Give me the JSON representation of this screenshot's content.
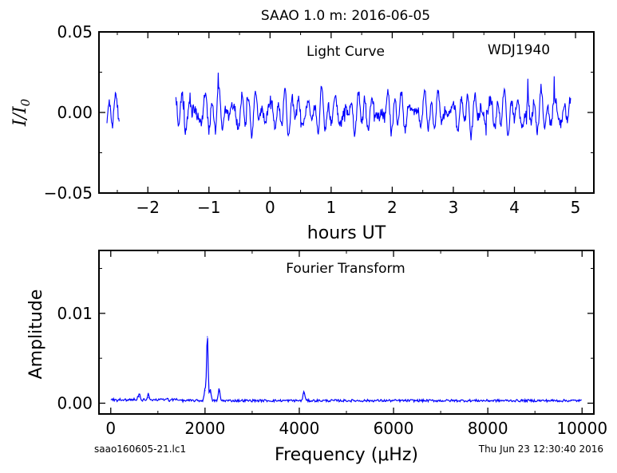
{
  "title": "SAAO 1.0 m:  2016-06-05",
  "footer": {
    "left": "saao160605-21.lc1",
    "right": "Thu Jun 23 12:30:40 2016"
  },
  "line_color": "#0000ff",
  "chart_data": [
    {
      "type": "line",
      "annotations": [
        "Light Curve",
        "WDJ1940"
      ],
      "xlabel": "hours UT",
      "ylabel": "I/I0",
      "xlim": [
        -2.8,
        5.3
      ],
      "ylim": [
        -0.05,
        0.05
      ],
      "xticks": [
        -2,
        -1,
        0,
        1,
        2,
        3,
        4,
        5
      ],
      "xtick_labels": [
        "−2",
        "−1",
        "0",
        "1",
        "2",
        "3",
        "4",
        "5"
      ],
      "yticks": [
        0.05,
        0.0,
        -0.05
      ],
      "ytick_labels": [
        "0.05",
        "0.00",
        "−0.05"
      ],
      "segments": [
        {
          "x_start": -2.67,
          "x_end": -2.47
        },
        {
          "x_start": -1.54,
          "x_end": 4.92
        }
      ],
      "amplitude_approx": 0.012,
      "series": [
        {
          "x": [
            -2.67,
            -2.6,
            -2.53,
            -2.47,
            -1.54,
            -1.0,
            0.0,
            0.6,
            1.0,
            2.0,
            3.0,
            4.0,
            4.5,
            4.92
          ],
          "y": [
            0.0,
            0.01,
            -0.01,
            0.0,
            0.0,
            0.01,
            -0.01,
            0.0,
            -0.012,
            0.012,
            -0.01,
            0.01,
            0.0,
            0.0
          ]
        }
      ]
    },
    {
      "type": "line",
      "annotations": [
        "Fourier Transform"
      ],
      "xlabel": "Frequency (μHz)",
      "ylabel": "Amplitude",
      "xlim": [
        -250,
        10250
      ],
      "ylim": [
        -0.0012,
        0.017
      ],
      "xticks": [
        0,
        2000,
        4000,
        6000,
        8000,
        10000
      ],
      "xtick_labels": [
        "0",
        "2000",
        "4000",
        "6000",
        "8000",
        "10000"
      ],
      "yticks": [
        0.01,
        0.0
      ],
      "ytick_labels": [
        "0.01",
        "0.00"
      ],
      "baseline_approx": 0.0003,
      "peaks": [
        {
          "x": 2050,
          "y": 0.0074
        },
        {
          "x": 2000,
          "y": 0.0014
        },
        {
          "x": 2110,
          "y": 0.0012
        },
        {
          "x": 2300,
          "y": 0.0013
        },
        {
          "x": 4100,
          "y": 0.0011
        },
        {
          "x": 600,
          "y": 0.0007
        },
        {
          "x": 800,
          "y": 0.0006
        }
      ]
    }
  ]
}
